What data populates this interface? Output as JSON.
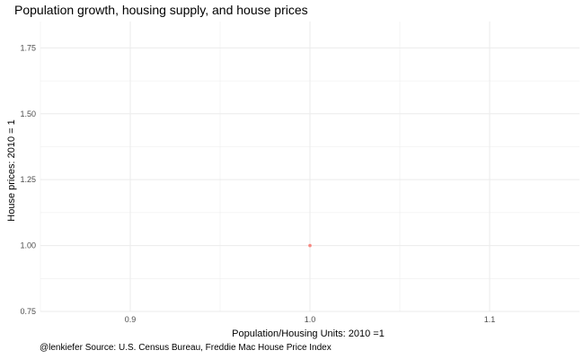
{
  "chart_data": {
    "type": "scatter",
    "title": "Population growth, housing supply, and house prices",
    "xlabel": "Population/Housing Units: 2010 =1",
    "ylabel": "House prices: 2010 = 1",
    "caption": "@lenkiefer Source: U.S. Census Bureau, Freddie Mac House Price Index",
    "xlim": [
      0.85,
      1.15
    ],
    "ylim": [
      0.75,
      1.85
    ],
    "x_ticks": [
      0.9,
      1.0,
      1.1
    ],
    "x_tick_labels": [
      "0.9",
      "1.0",
      "1.1"
    ],
    "y_ticks": [
      0.75,
      1.0,
      1.25,
      1.5,
      1.75
    ],
    "y_tick_labels": [
      "0.75",
      "1.00",
      "1.25",
      "1.50",
      "1.75"
    ],
    "grid": true,
    "points": [
      {
        "x": 1.0,
        "y": 1.0
      }
    ],
    "point_color": "#f8766d",
    "gridline_color": "#ebebeb"
  }
}
